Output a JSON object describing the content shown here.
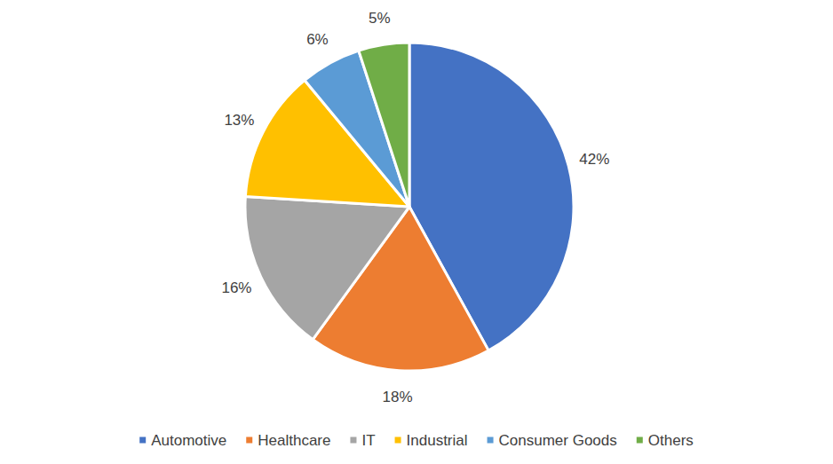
{
  "chart_data": {
    "type": "pie",
    "categories": [
      "Automotive",
      "Healthcare",
      "IT",
      "Industrial",
      "Consumer Goods",
      "Others"
    ],
    "values": [
      42,
      18,
      16,
      13,
      6,
      5
    ],
    "value_labels": [
      "42%",
      "18%",
      "16%",
      "13%",
      "6%",
      "5%"
    ],
    "colors": [
      "#4472c4",
      "#ed7d31",
      "#a5a5a5",
      "#ffc000",
      "#5b9bd5",
      "#70ad47"
    ],
    "data_labels": true,
    "legend": "bottom"
  }
}
